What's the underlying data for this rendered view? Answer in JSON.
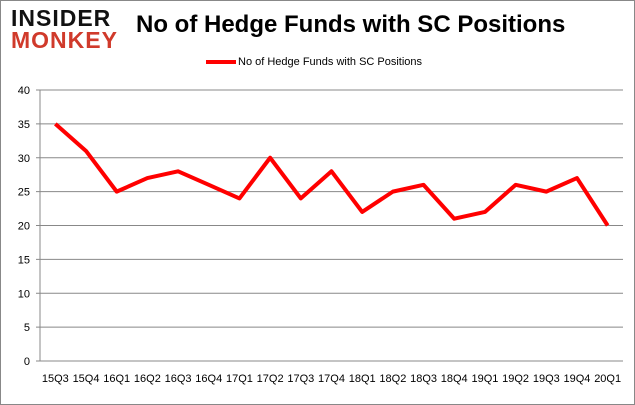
{
  "logo": {
    "line1": "INSIDER",
    "line2": "MONKEY"
  },
  "chart_data": {
    "type": "line",
    "title": "No of Hedge Funds with SC Positions",
    "categories": [
      "15Q3",
      "15Q4",
      "16Q1",
      "16Q2",
      "16Q3",
      "16Q4",
      "17Q1",
      "17Q2",
      "17Q3",
      "17Q4",
      "18Q1",
      "18Q2",
      "18Q3",
      "18Q4",
      "19Q1",
      "19Q2",
      "19Q3",
      "19Q4",
      "20Q1"
    ],
    "series": [
      {
        "name": "No of Hedge Funds with SC Positions",
        "color": "#ff0000",
        "values": [
          35,
          31,
          25,
          27,
          28,
          26,
          24,
          30,
          24,
          28,
          22,
          25,
          26,
          21,
          22,
          26,
          25,
          27,
          20
        ]
      }
    ],
    "ylim": [
      0,
      40
    ],
    "yticks": [
      0,
      5,
      10,
      15,
      20,
      25,
      30,
      35,
      40
    ],
    "grid": true,
    "legend": "top-center"
  }
}
